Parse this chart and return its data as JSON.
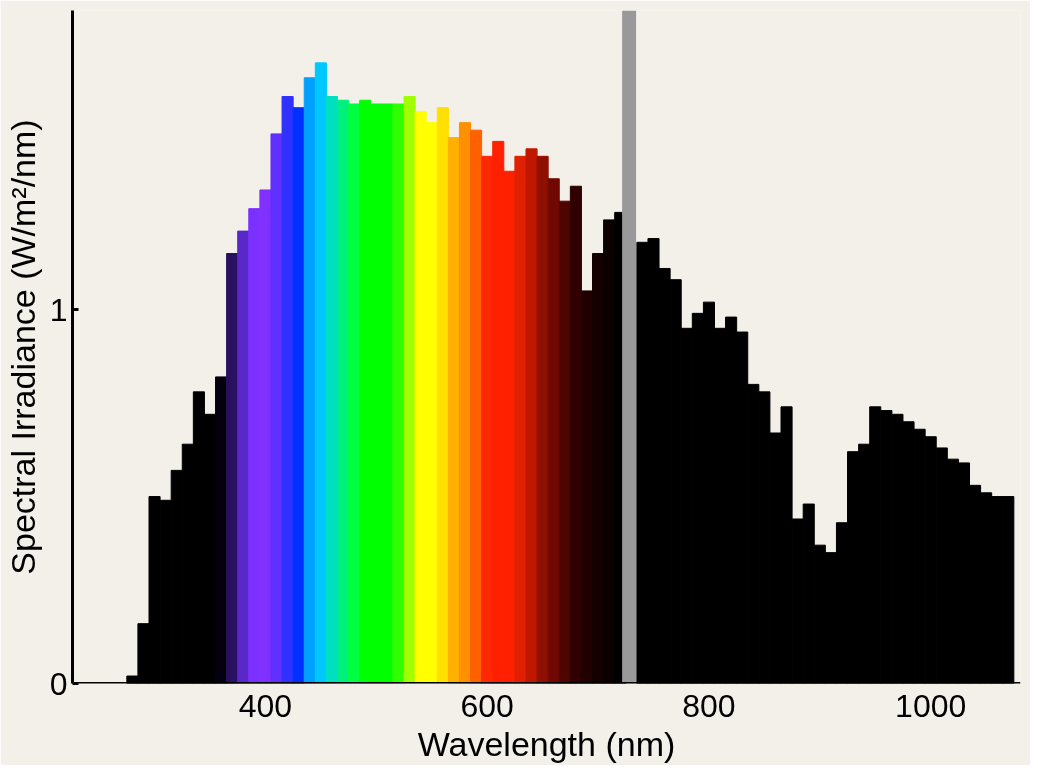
{
  "chart_data": {
    "type": "bar",
    "xlabel": "Wavelength (nm)",
    "ylabel": "Spectral Irradiance (W/m²/nm)",
    "x": [
      280,
      290,
      300,
      310,
      320,
      330,
      340,
      350,
      360,
      370,
      380,
      390,
      400,
      410,
      420,
      430,
      440,
      450,
      460,
      470,
      480,
      490,
      500,
      510,
      520,
      530,
      540,
      550,
      560,
      570,
      580,
      590,
      600,
      610,
      620,
      630,
      640,
      650,
      660,
      670,
      680,
      690,
      700,
      710,
      720,
      730,
      740,
      750,
      760,
      770,
      780,
      790,
      800,
      810,
      820,
      830,
      840,
      850,
      860,
      870,
      880,
      890,
      900,
      910,
      920,
      930,
      940,
      950,
      960,
      970,
      980,
      990,
      1000,
      1010,
      1020,
      1030,
      1040,
      1050,
      1060,
      1070
    ],
    "values": [
      0.02,
      0.16,
      0.5,
      0.49,
      0.57,
      0.64,
      0.78,
      0.72,
      0.82,
      1.15,
      1.21,
      1.27,
      1.32,
      1.47,
      1.57,
      1.54,
      1.62,
      1.66,
      1.57,
      1.56,
      1.55,
      1.56,
      1.55,
      1.55,
      1.55,
      1.57,
      1.53,
      1.5,
      1.54,
      1.46,
      1.5,
      1.48,
      1.41,
      1.45,
      1.37,
      1.41,
      1.43,
      1.41,
      1.35,
      1.29,
      1.33,
      1.05,
      1.15,
      1.24,
      1.26,
      null,
      1.18,
      1.19,
      1.11,
      1.08,
      0.95,
      0.99,
      1.02,
      0.95,
      0.98,
      0.94,
      0.8,
      0.78,
      0.67,
      0.74,
      0.44,
      0.48,
      0.37,
      0.35,
      0.43,
      0.62,
      0.64,
      0.74,
      0.73,
      0.72,
      0.7,
      0.68,
      0.66,
      0.63,
      0.6,
      0.59,
      0.53,
      0.51,
      0.5,
      0.5
    ],
    "colors": [
      "#000000",
      "#000000",
      "#000000",
      "#000000",
      "#000000",
      "#000000",
      "#000000",
      "#000000",
      "#05000f",
      "#2a1060",
      "#5a28c8",
      "#7a30ff",
      "#8030ff",
      "#6030ff",
      "#3030ff",
      "#0030ff",
      "#00a0ff",
      "#00c8ff",
      "#00e0c0",
      "#00f080",
      "#00ff40",
      "#00ff00",
      "#00ff00",
      "#00ff00",
      "#30ff00",
      "#a0ff00",
      "#ffff00",
      "#ffff00",
      "#ffe000",
      "#ffb000",
      "#ff9000",
      "#ff6000",
      "#ff2800",
      "#ff2000",
      "#ff2000",
      "#e02000",
      "#c01800",
      "#901000",
      "#700800",
      "#500400",
      "#300000",
      "#200000",
      "#150000",
      "#0a0000",
      "#000000",
      "#000000",
      "#000000",
      "#000000",
      "#000000",
      "#000000",
      "#000000",
      "#000000",
      "#000000",
      "#000000",
      "#000000",
      "#000000",
      "#000000",
      "#000000",
      "#000000",
      "#000000",
      "#000000",
      "#000000",
      "#000000",
      "#000000",
      "#000000",
      "#000000",
      "#000000",
      "#000000",
      "#000000",
      "#000000",
      "#000000",
      "#000000",
      "#000000",
      "#000000",
      "#000000",
      "#000000",
      "#000000",
      "#000000",
      "#000000",
      "#000000"
    ],
    "xlim": [
      226,
      1081
    ],
    "ylim": [
      0,
      1.8
    ],
    "xticks": [
      400,
      600,
      800,
      1000
    ],
    "yticks": [
      0,
      1
    ],
    "ref_lines": [
      {
        "axis": "x",
        "value": 728,
        "color": "#999999"
      }
    ],
    "grid": false
  }
}
